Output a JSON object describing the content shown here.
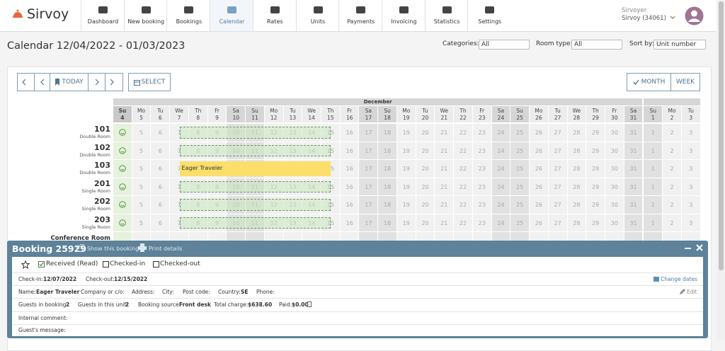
{
  "header": {
    "logo": "Sirvoy",
    "nav": [
      "Dashboard",
      "New booking",
      "Bookings",
      "Calendar",
      "Rates",
      "Units",
      "Payments",
      "Invoicing",
      "Statistics",
      "Settings"
    ],
    "user": {
      "name": "Sirvoyer",
      "account": "Sirvoy (34061)"
    }
  },
  "toolbar": {
    "title": "Calendar 12/04/2022 - 01/03/2023",
    "filters": [
      {
        "label": "Categories:",
        "value": "All"
      },
      {
        "label": "Room type:",
        "value": "All"
      },
      {
        "label": "Sort by:",
        "value": "Unit number"
      }
    ]
  },
  "calendar": {
    "buttons": {
      "today": "TODAY",
      "select": "SELECT",
      "month": "MONTH",
      "week": "WEEK"
    },
    "month": "December",
    "days": [
      {
        "dow": "Su",
        "day": 4
      },
      {
        "dow": "Mo",
        "day": 5
      },
      {
        "dow": "Tu",
        "day": 6
      },
      {
        "dow": "We",
        "day": 7
      },
      {
        "dow": "Th",
        "day": 8
      },
      {
        "dow": "Fr",
        "day": 9
      },
      {
        "dow": "Sa",
        "day": 10
      },
      {
        "dow": "Su",
        "day": 11
      },
      {
        "dow": "Mo",
        "day": 12
      },
      {
        "dow": "Tu",
        "day": 13
      },
      {
        "dow": "We",
        "day": 14
      },
      {
        "dow": "Th",
        "day": 15
      },
      {
        "dow": "Fr",
        "day": 16
      },
      {
        "dow": "Sa",
        "day": 17
      },
      {
        "dow": "Su",
        "day": 18
      },
      {
        "dow": "Mo",
        "day": 19
      },
      {
        "dow": "Tu",
        "day": 20
      },
      {
        "dow": "We",
        "day": 21
      },
      {
        "dow": "Th",
        "day": 22
      },
      {
        "dow": "Fr",
        "day": 23
      },
      {
        "dow": "Sa",
        "day": 24
      },
      {
        "dow": "Su",
        "day": 25
      },
      {
        "dow": "Mo",
        "day": 26
      },
      {
        "dow": "Tu",
        "day": 27
      },
      {
        "dow": "We",
        "day": 28
      },
      {
        "dow": "Th",
        "day": 29
      },
      {
        "dow": "Fr",
        "day": 30
      },
      {
        "dow": "Sa",
        "day": 31
      },
      {
        "dow": "Su",
        "day": 1
      },
      {
        "dow": "Mo",
        "day": 2
      },
      {
        "dow": "Tu",
        "day": 3
      }
    ],
    "rooms": [
      {
        "number": "101",
        "type": "Double Room"
      },
      {
        "number": "102",
        "type": "Double Room"
      },
      {
        "number": "103",
        "type": "Double Room"
      },
      {
        "number": "201",
        "type": "Single Room"
      },
      {
        "number": "202",
        "type": "Single Room"
      },
      {
        "number": "203",
        "type": "Single Room"
      },
      {
        "number": "Conference Room"
      }
    ],
    "booking_label": "Eager Traveler"
  },
  "booking_panel": {
    "title": "Booking 25929",
    "show": "Show this booking",
    "print": "Print details",
    "status": [
      "Received (Read)",
      "Checked-in",
      "Checked-out"
    ],
    "checkin": {
      "label": "Check-in:",
      "value": "12/07/2022"
    },
    "checkout": {
      "label": "Check-out:",
      "value": "12/15/2022"
    },
    "change_dates": "Change dates",
    "name": {
      "label": "Name:",
      "value": "Eager Traveler"
    },
    "company": "Company or c/o:",
    "address": "Address:",
    "city": "City:",
    "postcode": "Post code:",
    "country": {
      "label": "Country:",
      "value": "SE"
    },
    "phone": "Phone:",
    "edit": "Edit",
    "guests": {
      "label": "Guests in booking:",
      "value": 2
    },
    "guests_unit": {
      "label": "Guests in this unit:",
      "value": 2
    },
    "source": {
      "label": "Booking source:",
      "value": "Front desk"
    },
    "total": {
      "label": "Total charge:",
      "value": "$638.60"
    },
    "paid": {
      "label": "Paid:",
      "value": "$0.00"
    },
    "internal_comment": "Internal comment:",
    "guest_message": "Guest's message:"
  }
}
